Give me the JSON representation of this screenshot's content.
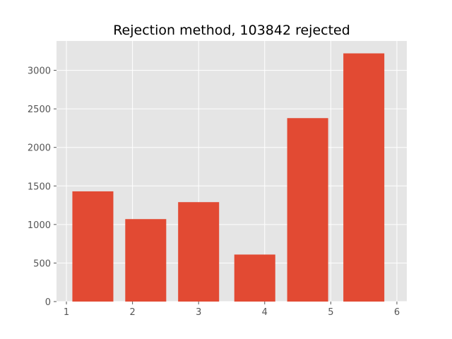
{
  "chart_data": {
    "type": "bar",
    "title": "Rejection method, 103842 rejected",
    "xlabel": "",
    "ylabel": "",
    "x": [
      1.4,
      2.2,
      3.0,
      3.85,
      4.65,
      5.5
    ],
    "values": [
      1430,
      1070,
      1290,
      610,
      2380,
      3220
    ],
    "bar_width": 0.62,
    "xlim": [
      0.85,
      6.15
    ],
    "ylim": [
      0,
      3381
    ],
    "xticks": [
      1,
      2,
      3,
      4,
      5,
      6
    ],
    "yticks": [
      0,
      500,
      1000,
      1500,
      2000,
      2500,
      3000
    ],
    "xtick_labels": [
      "1",
      "2",
      "3",
      "4",
      "5",
      "6"
    ],
    "ytick_labels": [
      "0",
      "500",
      "1000",
      "1500",
      "2000",
      "2500",
      "3000"
    ],
    "grid": true,
    "style": "ggplot",
    "colors": {
      "bar": "#E24A33",
      "plot_background": "#E5E5E5",
      "grid": "#FFFFFF",
      "tick": "#555555",
      "title": "#000000"
    }
  }
}
